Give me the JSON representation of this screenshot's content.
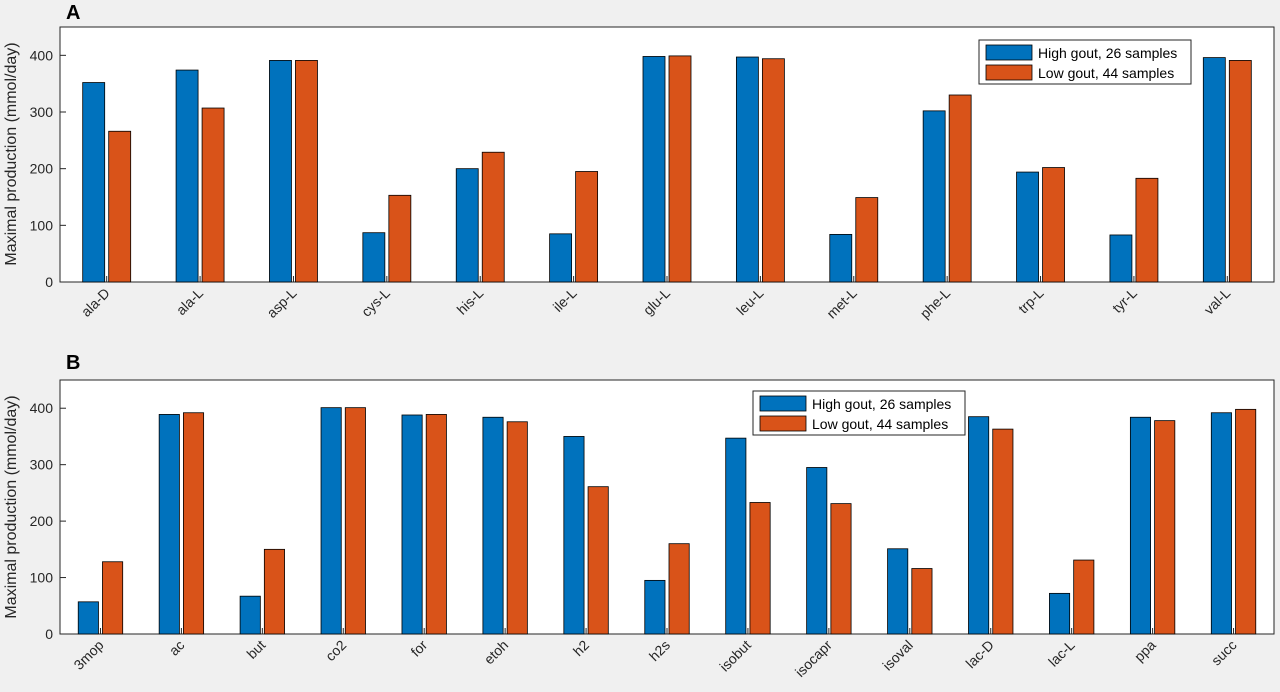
{
  "colors": {
    "high": "#0072bd",
    "low": "#d95319",
    "axis": "#262626",
    "background": "#f0f0f0",
    "plot_bg": "#ffffff"
  },
  "chart_data": [
    {
      "panel": "A",
      "type": "bar",
      "ylabel": "Maximal production (mmol/day)",
      "ylim": [
        0,
        450
      ],
      "yticks": [
        0,
        100,
        200,
        300,
        400
      ],
      "legend_position": "top-right",
      "categories": [
        "ala-D",
        "ala-L",
        "asp-L",
        "cys-L",
        "his-L",
        "ile-L",
        "glu-L",
        "leu-L",
        "met-L",
        "phe-L",
        "trp-L",
        "tyr-L",
        "val-L"
      ],
      "series": [
        {
          "name": "High gout, 26 samples",
          "color_key": "high",
          "values": [
            352,
            374,
            391,
            87,
            200,
            85,
            398,
            397,
            84,
            302,
            194,
            83,
            396
          ]
        },
        {
          "name": "Low gout, 44 samples",
          "color_key": "low",
          "values": [
            266,
            307,
            391,
            153,
            229,
            195,
            399,
            394,
            149,
            330,
            202,
            183,
            391
          ]
        }
      ]
    },
    {
      "panel": "B",
      "type": "bar",
      "ylabel": "Maximal production (mmol/day)",
      "ylim": [
        0,
        450
      ],
      "yticks": [
        0,
        100,
        200,
        300,
        400
      ],
      "legend_position": "top-center",
      "categories": [
        "3mop",
        "ac",
        "but",
        "co2",
        "for",
        "etoh",
        "h2",
        "h2s",
        "isobut",
        "isocapr",
        "isoval",
        "lac-D",
        "lac-L",
        "ppa",
        "succ"
      ],
      "series": [
        {
          "name": "High gout, 26 samples",
          "color_key": "high",
          "values": [
            57,
            389,
            67,
            401,
            388,
            384,
            350,
            95,
            347,
            295,
            151,
            385,
            72,
            384,
            392
          ]
        },
        {
          "name": "Low gout, 44 samples",
          "color_key": "low",
          "values": [
            128,
            392,
            150,
            401,
            389,
            376,
            261,
            160,
            233,
            231,
            116,
            363,
            131,
            378,
            398
          ]
        }
      ]
    }
  ]
}
